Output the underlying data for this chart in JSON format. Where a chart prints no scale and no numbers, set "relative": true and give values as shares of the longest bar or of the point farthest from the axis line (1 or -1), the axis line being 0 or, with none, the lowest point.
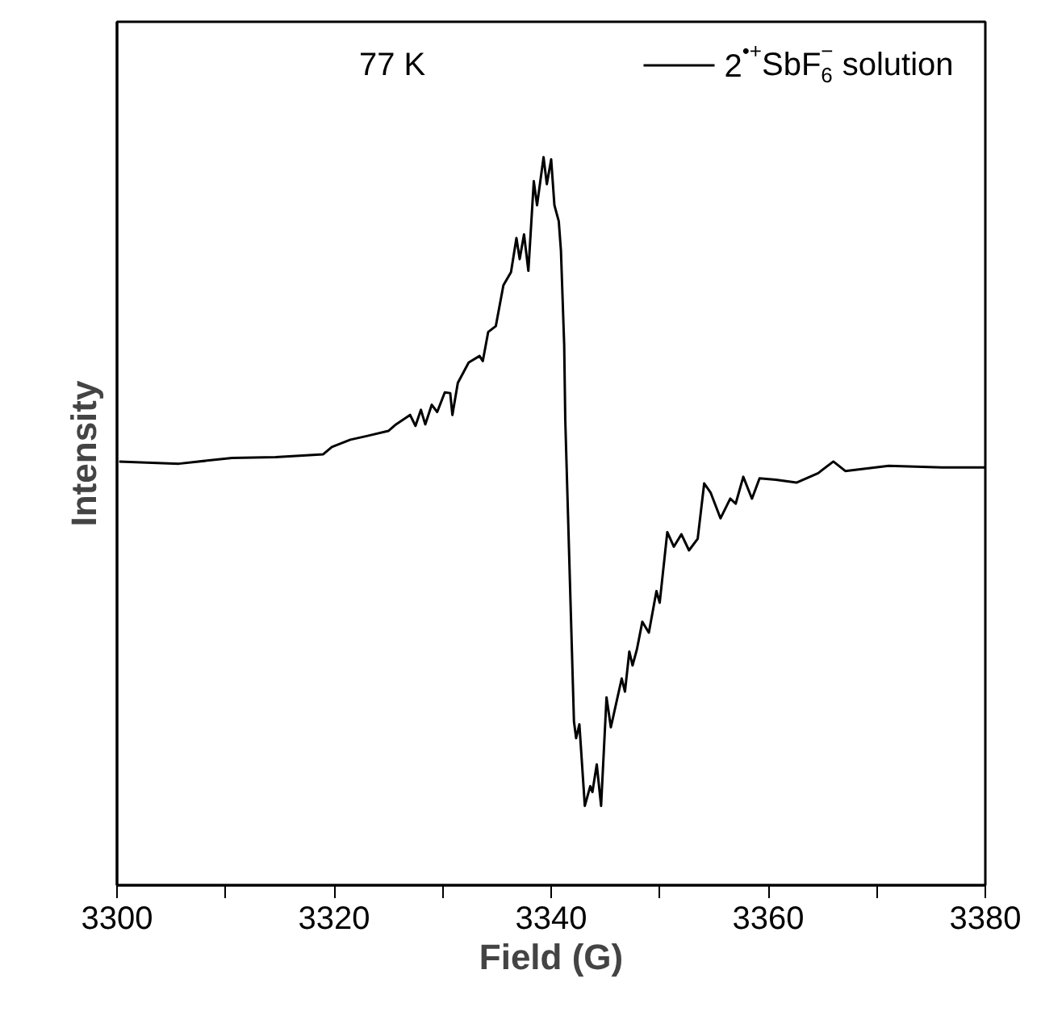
{
  "chart_data": {
    "type": "line",
    "relative": true,
    "xlabel": "Field (G)",
    "ylabel": "Intensity",
    "annotations": [
      "77 K"
    ],
    "xlim": [
      3300,
      3380
    ],
    "xticks": [
      3300,
      {
        "value": 3310,
        "label": null
      },
      3320,
      {
        "value": 3330,
        "label": null
      },
      3340,
      {
        "value": 3350,
        "label": null
      },
      3360,
      {
        "value": 3370,
        "label": null
      },
      3380
    ],
    "tick_labels": "x",
    "legend": "top right",
    "grid": false,
    "series": [
      {
        "name": "2$^{•+}$SbF$_{6}$$^{−}$ solution",
        "color": "#000000",
        "x": [
          3300.2,
          3305.7,
          3310.6,
          3314.6,
          3319.0,
          3319.8,
          3321.5,
          3323.0,
          3325.0,
          3325.7,
          3327.0,
          3327.5,
          3328.0,
          3328.4,
          3329.0,
          3329.5,
          3330.2,
          3330.7,
          3330.9,
          3331.4,
          3332.4,
          3333.4,
          3333.7,
          3334.2,
          3334.9,
          3335.6,
          3336.3,
          3336.8,
          3337.1,
          3337.5,
          3337.9,
          3338.4,
          3338.7,
          3339.3,
          3339.6,
          3340.0,
          3340.3,
          3340.7,
          3340.9,
          3341.2,
          3341.3,
          3342.1,
          3342.3,
          3342.6,
          3343.1,
          3343.6,
          3343.8,
          3344.2,
          3344.6,
          3345.1,
          3345.5,
          3346.5,
          3346.8,
          3347.2,
          3347.5,
          3347.9,
          3348.4,
          3349.0,
          3349.7,
          3350.0,
          3350.7,
          3351.3,
          3352.0,
          3352.7,
          3353.5,
          3354.1,
          3354.7,
          3355.6,
          3356.5,
          3357.0,
          3357.7,
          3358.5,
          3359.2,
          3360.7,
          3362.6,
          3364.6,
          3366.0,
          3367.1,
          3371.1,
          3376.0,
          3380.0
        ],
        "values": [
          0.582,
          0.579,
          0.587,
          0.588,
          0.592,
          0.602,
          0.612,
          0.617,
          0.624,
          0.633,
          0.646,
          0.631,
          0.653,
          0.633,
          0.66,
          0.65,
          0.677,
          0.676,
          0.646,
          0.69,
          0.718,
          0.727,
          0.72,
          0.76,
          0.768,
          0.824,
          0.842,
          0.889,
          0.86,
          0.894,
          0.844,
          0.967,
          0.934,
          1.0,
          0.963,
          0.997,
          0.934,
          0.912,
          0.872,
          0.742,
          0.639,
          0.225,
          0.202,
          0.221,
          0.109,
          0.136,
          0.128,
          0.166,
          0.109,
          0.258,
          0.217,
          0.284,
          0.266,
          0.321,
          0.302,
          0.324,
          0.362,
          0.347,
          0.404,
          0.388,
          0.485,
          0.465,
          0.482,
          0.46,
          0.476,
          0.552,
          0.539,
          0.504,
          0.531,
          0.524,
          0.561,
          0.531,
          0.559,
          0.557,
          0.553,
          0.566,
          0.582,
          0.569,
          0.576,
          0.574,
          0.574
        ]
      }
    ]
  }
}
